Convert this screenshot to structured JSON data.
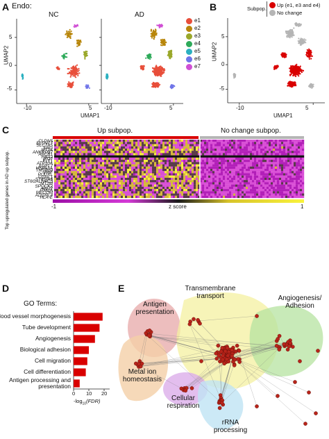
{
  "panel_a": {
    "letter": "A",
    "cell_type": "Endo:",
    "subplots": [
      {
        "title": "NC"
      },
      {
        "title": "AD"
      }
    ],
    "ylabel": "UMAP2",
    "xlabel": "UMAP1",
    "yticks": [
      "5",
      "0",
      "-5"
    ],
    "xticks": [
      "-10",
      "5"
    ],
    "legend": [
      {
        "label": "e1",
        "color": "#e84e3a"
      },
      {
        "label": "e2",
        "color": "#b8860b"
      },
      {
        "label": "e3",
        "color": "#9aa82a"
      },
      {
        "label": "e4",
        "color": "#2eaa5a"
      },
      {
        "label": "e5",
        "color": "#2ab0c0"
      },
      {
        "label": "e6",
        "color": "#6f74e8"
      },
      {
        "label": "e7",
        "color": "#d04fd4"
      }
    ]
  },
  "panel_b": {
    "letter": "B",
    "legend_title": "Subpop.",
    "legend": [
      {
        "label": "Up (e1, e3 and e4)",
        "color": "#d90000"
      },
      {
        "label": "No change",
        "color": "#b5b5b5"
      }
    ],
    "ylabel": "UMAP2",
    "xlabel": "UMAP1",
    "yticks": [
      "5",
      "0",
      "-5"
    ],
    "xticks": [
      "-10",
      "5"
    ]
  },
  "panel_c": {
    "letter": "C",
    "group_left": "Up subpop.",
    "group_right": "No change subpop.",
    "group_left_color": "#d90000",
    "group_right_color": "#b5b5b5",
    "ylabel": "Top upregulated genes in AD up subpop.",
    "genes": [
      "CLDN5",
      "ELOVL7",
      "SLC7A5",
      "ERG",
      "MT2A",
      "ANKRD37",
      "ABCB1",
      "HBA2",
      "IFI27",
      "FLT1",
      "ATP10A",
      "EGFL7",
      "HSPA1A",
      "TMSB10",
      "VWF",
      "PODXL",
      "CGNL1",
      "ST8SIA6",
      "ST6GALNAC3",
      "MT1M",
      "SPOCK2",
      "ANO2",
      "ITM2A",
      "MECOM",
      "ADGRL4",
      "HLA-E"
    ],
    "colorbar_min": "-1",
    "colorbar_label": "z score",
    "colorbar_max": "1"
  },
  "panel_d": {
    "letter": "D",
    "header": "GO Terms:",
    "xlabel_prefix": "-log",
    "xlabel_sub": "10",
    "xlabel_suffix": "(FDR)",
    "xticks": [
      "0",
      "10",
      "20"
    ],
    "bar_color": "#d90000"
  },
  "chart_data": {
    "type": "bar",
    "orientation": "horizontal",
    "categories": [
      "Blood vessel morphogenesis",
      "Tube development",
      "Angiogenesis",
      "Biological adhesion",
      "Cell migration",
      "Cell differentiation",
      "Antigen processing and presentation"
    ],
    "values": [
      19,
      17,
      14,
      10,
      9,
      8,
      4
    ],
    "xlim": [
      0,
      20
    ],
    "xlabel": "-log10(FDR)"
  },
  "panel_e": {
    "letter": "E",
    "clusters": [
      {
        "label": "Antigen\npresentation",
        "color": "#e7a8a8"
      },
      {
        "label": "Transmembrane\ntransport",
        "color": "#f4f0a0"
      },
      {
        "label": "Angiogenesis/\nAdhesion",
        "color": "#b6e3a0"
      },
      {
        "label": "Metal ion\nhomeostasis",
        "color": "#f4cfa8"
      },
      {
        "label": "Cellular\nrespiration",
        "color": "#dcaeea"
      },
      {
        "label": "rRNA\nprocessing",
        "color": "#bfe4f4"
      }
    ],
    "node_color": "#b8241a"
  }
}
